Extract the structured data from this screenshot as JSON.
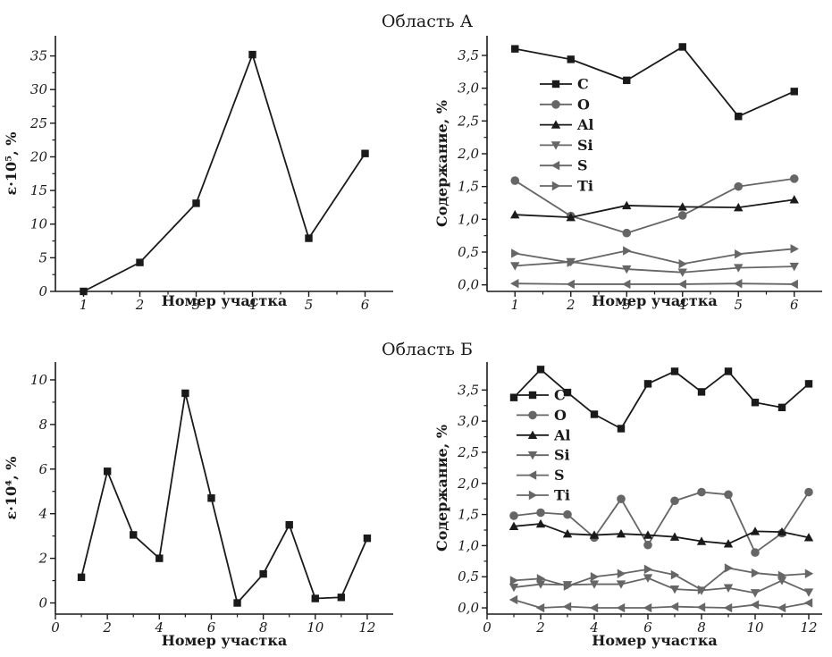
{
  "sections": [
    "Область А",
    "Область Б"
  ],
  "colors": {
    "dark": "#1a1a1a",
    "gray": "#666666"
  },
  "chart_data": [
    {
      "id": "a_strain",
      "type": "line",
      "section": "Область А",
      "xlabel": "Номер участка",
      "ylabel": "ε·10⁵, %",
      "xlim": [
        0.5,
        6.5
      ],
      "ylim": [
        0,
        38
      ],
      "xticks": [
        1,
        2,
        3,
        4,
        5,
        6
      ],
      "yticks": [
        0,
        5,
        10,
        15,
        20,
        25,
        30,
        35
      ],
      "xtick_labels": [
        "1",
        "2",
        "3",
        "4",
        "5",
        "6"
      ],
      "ytick_labels": [
        "0",
        "5",
        "10",
        "15",
        "20",
        "25",
        "30",
        "35"
      ],
      "legend": [],
      "series": [
        {
          "name": "",
          "marker": "square",
          "color": "#1a1a1a",
          "x": [
            1,
            2,
            3,
            4,
            5,
            6
          ],
          "values": [
            0,
            4.3,
            13.1,
            35.2,
            7.9,
            20.5
          ]
        }
      ]
    },
    {
      "id": "a_content",
      "type": "line",
      "section": "Область А",
      "xlabel": "Номер участка",
      "ylabel": "Содержание, %",
      "xlim": [
        0.5,
        6.5
      ],
      "ylim": [
        -0.1,
        3.8
      ],
      "xticks": [
        1,
        2,
        3,
        4,
        5,
        6
      ],
      "yticks": [
        0,
        0.5,
        1,
        1.5,
        2,
        2.5,
        3,
        3.5
      ],
      "xtick_labels": [
        "1",
        "2",
        "3",
        "4",
        "5",
        "6"
      ],
      "ytick_labels": [
        "0,0",
        "0,5",
        "1,0",
        "1,5",
        "2,0",
        "2,5",
        "3,0",
        "3,5"
      ],
      "legend": [
        "C",
        "O",
        "Al",
        "Si",
        "S",
        "Ti"
      ],
      "legend_position": "upper-left",
      "series": [
        {
          "name": "C",
          "marker": "square",
          "color": "#1a1a1a",
          "x": [
            1,
            2,
            3,
            4,
            5,
            6
          ],
          "values": [
            3.6,
            3.44,
            3.12,
            3.63,
            2.57,
            2.95
          ]
        },
        {
          "name": "O",
          "marker": "circle",
          "color": "#666666",
          "x": [
            1,
            2,
            3,
            4,
            5,
            6
          ],
          "values": [
            1.59,
            1.05,
            0.79,
            1.06,
            1.5,
            1.62
          ]
        },
        {
          "name": "Al",
          "marker": "triangle-up",
          "color": "#1a1a1a",
          "x": [
            1,
            2,
            3,
            4,
            5,
            6
          ],
          "values": [
            1.07,
            1.03,
            1.21,
            1.19,
            1.18,
            1.3
          ]
        },
        {
          "name": "Si",
          "marker": "triangle-down",
          "color": "#666666",
          "x": [
            1,
            2,
            3,
            4,
            5,
            6
          ],
          "values": [
            0.29,
            0.35,
            0.24,
            0.19,
            0.26,
            0.28
          ]
        },
        {
          "name": "S",
          "marker": "triangle-left",
          "color": "#666666",
          "x": [
            1,
            2,
            3,
            4,
            5,
            6
          ],
          "values": [
            0.02,
            0.01,
            0.01,
            0.01,
            0.02,
            0.01
          ]
        },
        {
          "name": "Ti",
          "marker": "triangle-right",
          "color": "#666666",
          "x": [
            1,
            2,
            3,
            4,
            5,
            6
          ],
          "values": [
            0.48,
            0.34,
            0.52,
            0.32,
            0.47,
            0.55
          ]
        }
      ]
    },
    {
      "id": "b_strain",
      "type": "line",
      "section": "Область Б",
      "xlabel": "Номер участка",
      "ylabel": "ε·10⁴, %",
      "xlim": [
        0,
        13
      ],
      "ylim": [
        -0.5,
        10.8
      ],
      "xticks": [
        0,
        2,
        4,
        6,
        8,
        10,
        12
      ],
      "yticks": [
        0,
        2,
        4,
        6,
        8,
        10
      ],
      "xtick_labels": [
        "0",
        "2",
        "4",
        "6",
        "8",
        "10",
        "12"
      ],
      "ytick_labels": [
        "0",
        "2",
        "4",
        "6",
        "8",
        "10"
      ],
      "legend": [],
      "series": [
        {
          "name": "",
          "marker": "square",
          "color": "#1a1a1a",
          "x": [
            1,
            2,
            3,
            4,
            5,
            6,
            7,
            8,
            9,
            10,
            11,
            12
          ],
          "values": [
            1.15,
            5.9,
            3.05,
            2.0,
            9.4,
            4.7,
            0.0,
            1.3,
            3.5,
            0.2,
            0.25,
            2.9
          ]
        }
      ]
    },
    {
      "id": "b_content",
      "type": "line",
      "section": "Область Б",
      "xlabel": "Номер участка",
      "ylabel": "Содержание, %",
      "xlim": [
        0,
        12.5
      ],
      "ylim": [
        -0.1,
        3.95
      ],
      "xticks": [
        0,
        2,
        4,
        6,
        8,
        10,
        12
      ],
      "yticks": [
        0,
        0.5,
        1,
        1.5,
        2,
        2.5,
        3,
        3.5
      ],
      "xtick_labels": [
        "0",
        "2",
        "4",
        "6",
        "8",
        "10",
        "12"
      ],
      "ytick_labels": [
        "0,0",
        "0,5",
        "1,0",
        "1,5",
        "2,0",
        "2,5",
        "3,0",
        "3,5"
      ],
      "legend": [
        "C",
        "O",
        "Al",
        "Si",
        "S",
        "Ti"
      ],
      "legend_position": "upper-left",
      "series": [
        {
          "name": "C",
          "marker": "square",
          "color": "#1a1a1a",
          "x": [
            1,
            2,
            3,
            4,
            5,
            6,
            7,
            8,
            9,
            10,
            11,
            12
          ],
          "values": [
            3.38,
            3.83,
            3.46,
            3.11,
            2.88,
            3.6,
            3.8,
            3.47,
            3.8,
            3.3,
            3.22,
            3.6
          ]
        },
        {
          "name": "O",
          "marker": "circle",
          "color": "#666666",
          "x": [
            1,
            2,
            3,
            4,
            5,
            6,
            7,
            8,
            9,
            10,
            11,
            12
          ],
          "values": [
            1.48,
            1.53,
            1.5,
            1.13,
            1.75,
            1.01,
            1.72,
            1.86,
            1.82,
            0.89,
            1.2,
            1.86
          ]
        },
        {
          "name": "Al",
          "marker": "triangle-up",
          "color": "#1a1a1a",
          "x": [
            1,
            2,
            3,
            4,
            5,
            6,
            7,
            8,
            9,
            10,
            11,
            12
          ],
          "values": [
            1.31,
            1.35,
            1.19,
            1.17,
            1.19,
            1.17,
            1.14,
            1.07,
            1.03,
            1.23,
            1.22,
            1.13
          ]
        },
        {
          "name": "Si",
          "marker": "triangle-down",
          "color": "#666666",
          "x": [
            1,
            2,
            3,
            4,
            5,
            6,
            7,
            8,
            9,
            10,
            11,
            12
          ],
          "values": [
            0.33,
            0.38,
            0.37,
            0.38,
            0.38,
            0.48,
            0.3,
            0.28,
            0.32,
            0.24,
            0.44,
            0.25
          ]
        },
        {
          "name": "S",
          "marker": "triangle-left",
          "color": "#666666",
          "x": [
            1,
            2,
            3,
            4,
            5,
            6,
            7,
            8,
            9,
            10,
            11,
            12
          ],
          "values": [
            0.13,
            0.0,
            0.02,
            0.0,
            0.0,
            0.0,
            0.02,
            0.01,
            0.0,
            0.05,
            0.0,
            0.08
          ]
        },
        {
          "name": "Ti",
          "marker": "triangle-right",
          "color": "#666666",
          "x": [
            1,
            2,
            3,
            4,
            5,
            6,
            7,
            8,
            9,
            10,
            11,
            12
          ],
          "values": [
            0.44,
            0.47,
            0.35,
            0.5,
            0.55,
            0.62,
            0.53,
            0.29,
            0.64,
            0.56,
            0.52,
            0.55
          ]
        }
      ]
    }
  ]
}
